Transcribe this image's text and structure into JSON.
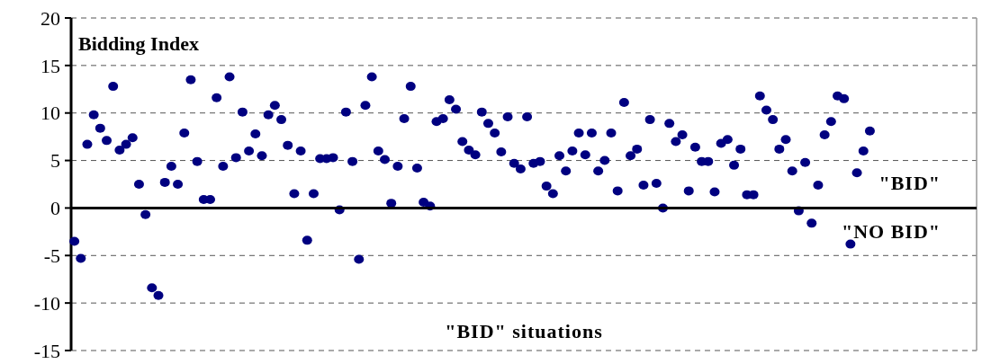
{
  "chart_data": {
    "type": "scatter",
    "categories": [
      null,
      null,
      null,
      null,
      null,
      null,
      null,
      null,
      null,
      null,
      null,
      null,
      null,
      null,
      null,
      null,
      null,
      null,
      null,
      null,
      null,
      null,
      null,
      null,
      null,
      null,
      null,
      null,
      null,
      null,
      null,
      null,
      null,
      null,
      null,
      null,
      null,
      null,
      null,
      null,
      null,
      null,
      null,
      null,
      null,
      null,
      null,
      null,
      null,
      null,
      null,
      null,
      null,
      null,
      null,
      null,
      null,
      null,
      null,
      null,
      null,
      null,
      null,
      null,
      null,
      null,
      null,
      null,
      null,
      null,
      null,
      null,
      null,
      null,
      null,
      null,
      null,
      null,
      null,
      null,
      null,
      null,
      null,
      null,
      null,
      null,
      null,
      null,
      null,
      null,
      null,
      null,
      null,
      null,
      null,
      null,
      null,
      null,
      null,
      null,
      null,
      null,
      null,
      null,
      null,
      null,
      null,
      null,
      null,
      null,
      null,
      null,
      null,
      null,
      null,
      null,
      null,
      null,
      null,
      null,
      null,
      null,
      null,
      null,
      null,
      null,
      null,
      null,
      null,
      null,
      null,
      null,
      null,
      null,
      null,
      null,
      null,
      null,
      null,
      null
    ],
    "series": [
      {
        "color": "#000080",
        "values": [
          -3.5,
          -5.3,
          6.7,
          9.8,
          8.4,
          7.1,
          12.8,
          6.1,
          6.7,
          7.4,
          2.5,
          -0.7,
          -8.4,
          -9.2,
          2.7,
          4.4,
          2.5,
          7.9,
          13.5,
          4.9,
          0.9,
          0.9,
          11.6,
          4.4,
          13.8,
          5.3,
          10.1,
          6.0,
          7.8,
          5.5,
          9.8,
          10.8,
          9.3,
          6.6,
          1.5,
          6.0,
          -3.4,
          1.5,
          5.2,
          5.2,
          5.3,
          -0.2,
          10.1,
          4.9,
          -5.4,
          10.8,
          13.8,
          6.0,
          5.1,
          0.5,
          4.4,
          9.4,
          12.8,
          4.2,
          0.6,
          0.2,
          9.1,
          9.4,
          11.4,
          10.4,
          7.0,
          6.1,
          5.6,
          10.1,
          8.9,
          7.9,
          5.9,
          9.6,
          4.7,
          4.1,
          9.6,
          4.7,
          4.9,
          2.3,
          1.5,
          5.5,
          3.9,
          6.0,
          7.9,
          5.6,
          7.9,
          3.9,
          5.0,
          7.9,
          1.8,
          11.1,
          5.5,
          6.2,
          2.4,
          9.3,
          2.6,
          0.0,
          8.9,
          7.0,
          7.7,
          1.8,
          6.4,
          4.9,
          4.9,
          1.7,
          6.8,
          7.2,
          4.5,
          6.2,
          1.4,
          1.4,
          11.8,
          10.3,
          9.3,
          6.2,
          7.2,
          3.9,
          -0.3,
          4.8,
          -1.6,
          2.4,
          7.7,
          9.1,
          11.8,
          11.5,
          -3.8,
          3.7,
          6.0,
          8.1,
          null,
          null,
          null,
          null,
          null,
          null,
          null,
          null,
          null,
          null,
          null,
          null,
          null,
          null,
          null,
          null
        ]
      }
    ],
    "ylim": [
      -15,
      20
    ],
    "yticks": [
      -15,
      -10,
      -5,
      0,
      5,
      10,
      15,
      20
    ],
    "grid": "y",
    "marker": "circle",
    "annotations": [
      "Bidding Index",
      "\"BID\"",
      "\"NO BID\"",
      "\"BID\" situations"
    ]
  }
}
